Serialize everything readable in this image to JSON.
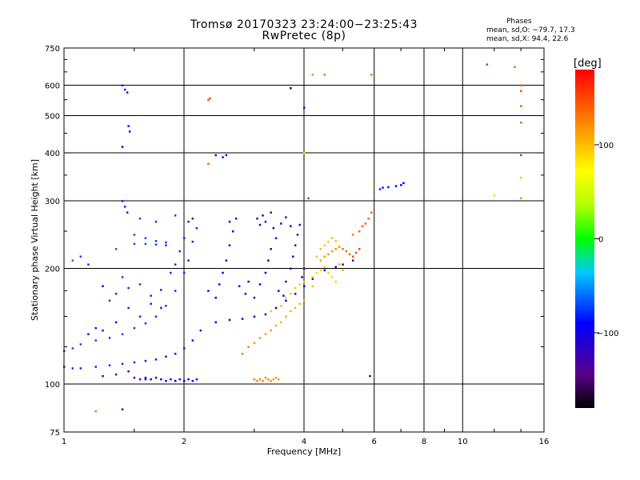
{
  "header": {
    "title": "Tromsø 20170323 23:24:00−23:25:43",
    "subtitle": "RwPretec (8p)"
  },
  "stats": {
    "title": "Phases",
    "o_line": "mean, sd,O: −79.7, 17.3",
    "x_line": "mean, sd,X:  94.4, 22.6"
  },
  "colorbar": {
    "label": "[deg]",
    "range": [
      -180,
      180
    ],
    "ticks": [
      "100",
      "0",
      "−100"
    ],
    "tick_values": [
      100,
      0,
      -100
    ]
  },
  "chart_data": {
    "type": "scatter",
    "xlabel": "Frequency [MHz]",
    "ylabel": "Stationary phase Virtual Height [km]",
    "xscale": "log",
    "yscale": "log",
    "xlim": [
      1,
      16
    ],
    "ylim": [
      75,
      750
    ],
    "xticks": [
      1,
      2,
      4,
      6,
      8,
      10,
      16
    ],
    "xtick_labels": [
      "1",
      "2",
      "4",
      "6",
      "8",
      "10",
      "16"
    ],
    "yticks": [
      75,
      100,
      200,
      300,
      400,
      500,
      600,
      750
    ],
    "ytick_labels": [
      "75",
      "100",
      "200",
      "300",
      "400",
      "500",
      "600",
      "750"
    ],
    "grid": true,
    "color_variable": "phase [deg]",
    "series": [
      {
        "points": [
          [
            1.0,
            111,
            -75
          ],
          [
            1.05,
            110,
            -75
          ],
          [
            1.1,
            110,
            -76
          ],
          [
            1.2,
            111,
            -77
          ],
          [
            1.3,
            112,
            -78
          ],
          [
            1.4,
            113,
            -79
          ],
          [
            1.5,
            114,
            -80
          ],
          [
            1.6,
            115,
            -81
          ],
          [
            1.7,
            116,
            -82
          ],
          [
            1.8,
            118,
            -83
          ],
          [
            1.9,
            120,
            -84
          ],
          [
            2.0,
            124,
            -85
          ],
          [
            2.1,
            130,
            -86
          ],
          [
            2.2,
            138,
            -88
          ],
          [
            2.4,
            145,
            -90
          ],
          [
            2.6,
            147,
            -92
          ],
          [
            2.8,
            148,
            -93
          ],
          [
            3.0,
            150,
            -95
          ],
          [
            3.2,
            152,
            -97
          ],
          [
            3.4,
            158,
            -98
          ],
          [
            3.6,
            165,
            -100
          ],
          [
            3.8,
            172,
            -101
          ],
          [
            4.0,
            180,
            -102
          ],
          [
            4.2,
            188,
            -104
          ],
          [
            4.5,
            198,
            -106
          ],
          [
            4.8,
            202,
            -108
          ],
          [
            5.0,
            205,
            -110
          ],
          [
            5.3,
            210,
            -112
          ],
          [
            1.0,
            122,
            -68
          ],
          [
            1.05,
            124,
            -68
          ],
          [
            1.1,
            127,
            -70
          ],
          [
            1.2,
            130,
            -70
          ],
          [
            1.3,
            132,
            -71
          ],
          [
            1.4,
            135,
            -72
          ],
          [
            1.5,
            140,
            -72
          ],
          [
            1.6,
            144,
            -73
          ],
          [
            1.7,
            150,
            -74
          ],
          [
            1.8,
            160,
            -75
          ],
          [
            1.9,
            175,
            -76
          ],
          [
            2.0,
            195,
            -78
          ],
          [
            2.05,
            210,
            -79
          ],
          [
            2.1,
            235,
            -80
          ],
          [
            2.15,
            255,
            -81
          ],
          [
            1.5,
            232,
            -70
          ],
          [
            1.6,
            232,
            -71
          ],
          [
            1.7,
            231,
            -72
          ],
          [
            1.8,
            230,
            -72
          ],
          [
            1.5,
            245,
            -69
          ],
          [
            1.6,
            240,
            -70
          ],
          [
            1.7,
            236,
            -71
          ],
          [
            1.8,
            234,
            -72
          ],
          [
            1.4,
            190,
            -74
          ],
          [
            1.45,
            178,
            -74
          ],
          [
            1.55,
            182,
            -75
          ],
          [
            1.65,
            170,
            -76
          ],
          [
            1.75,
            176,
            -77
          ],
          [
            1.85,
            195,
            -78
          ],
          [
            1.9,
            205,
            -78
          ],
          [
            1.95,
            222,
            -79
          ],
          [
            2.0,
            240,
            -80
          ],
          [
            2.05,
            265,
            -82
          ],
          [
            1.3,
            165,
            -76
          ],
          [
            1.35,
            172,
            -77
          ],
          [
            1.45,
            158,
            -78
          ],
          [
            1.55,
            150,
            -79
          ],
          [
            1.65,
            162,
            -79
          ],
          [
            1.75,
            158,
            -80
          ],
          [
            1.2,
            140,
            -82
          ],
          [
            1.25,
            138,
            -83
          ],
          [
            1.35,
            145,
            -84
          ],
          [
            1.15,
            135,
            -85
          ],
          [
            2.3,
            175,
            -86
          ],
          [
            2.4,
            168,
            -87
          ],
          [
            2.45,
            182,
            -88
          ],
          [
            2.5,
            195,
            -89
          ],
          [
            2.55,
            210,
            -90
          ],
          [
            2.6,
            230,
            -91
          ],
          [
            2.65,
            250,
            -92
          ],
          [
            2.7,
            270,
            -93
          ],
          [
            2.6,
            265,
            -92
          ],
          [
            2.75,
            180,
            -90
          ],
          [
            2.85,
            172,
            -91
          ],
          [
            2.9,
            185,
            -92
          ],
          [
            3.0,
            168,
            -94
          ],
          [
            3.1,
            182,
            -100
          ],
          [
            3.2,
            195,
            -102
          ],
          [
            3.25,
            210,
            -104
          ],
          [
            3.3,
            225,
            -106
          ],
          [
            3.4,
            240,
            -108
          ],
          [
            3.35,
            255,
            -109
          ],
          [
            3.45,
            175,
            -110
          ],
          [
            3.55,
            170,
            -112
          ],
          [
            3.6,
            185,
            -114
          ],
          [
            3.7,
            200,
            -116
          ],
          [
            3.75,
            215,
            -117
          ],
          [
            3.8,
            230,
            -118
          ],
          [
            3.85,
            245,
            -119
          ],
          [
            3.9,
            260,
            -120
          ],
          [
            3.95,
            190,
            -115
          ],
          [
            4.0,
            200,
            -116
          ],
          [
            3.05,
            270,
            -115
          ],
          [
            3.1,
            260,
            -116
          ],
          [
            3.15,
            275,
            -117
          ],
          [
            3.2,
            265,
            -118
          ],
          [
            3.3,
            280,
            -119
          ],
          [
            3.5,
            262,
            -120
          ],
          [
            3.6,
            272,
            -121
          ],
          [
            3.7,
            258,
            -122
          ],
          [
            1.75,
            103,
            -85
          ],
          [
            1.8,
            102,
            -86
          ],
          [
            1.85,
            103,
            -87
          ],
          [
            1.9,
            102,
            -88
          ],
          [
            1.95,
            103,
            -89
          ],
          [
            2.0,
            102,
            -90
          ],
          [
            2.05,
            103,
            -91
          ],
          [
            2.1,
            102,
            -92
          ],
          [
            2.15,
            103,
            -93
          ],
          [
            1.6,
            104,
            -95
          ],
          [
            1.65,
            103,
            -96
          ],
          [
            1.5,
            104,
            -120
          ],
          [
            1.55,
            103,
            -122
          ],
          [
            1.7,
            104,
            -124
          ],
          [
            1.45,
            108,
            -130
          ],
          [
            1.35,
            106,
            -140
          ],
          [
            1.25,
            105,
            -150
          ],
          [
            1.6,
            103,
            -150
          ],
          [
            1.9,
            102,
            -155
          ],
          [
            3.0,
            103,
            130
          ],
          [
            3.05,
            102,
            128
          ],
          [
            3.1,
            103,
            126
          ],
          [
            3.15,
            102,
            125
          ],
          [
            3.2,
            104,
            124
          ],
          [
            3.25,
            103,
            122
          ],
          [
            3.3,
            102,
            120
          ],
          [
            3.35,
            103,
            118
          ],
          [
            3.4,
            104,
            117
          ],
          [
            3.45,
            103,
            116
          ],
          [
            2.8,
            120,
            130
          ],
          [
            2.9,
            125,
            125
          ],
          [
            3.0,
            128,
            120
          ],
          [
            3.1,
            132,
            118
          ],
          [
            3.2,
            135,
            116
          ],
          [
            3.3,
            138,
            114
          ],
          [
            3.4,
            142,
            112
          ],
          [
            3.5,
            145,
            110
          ],
          [
            3.6,
            150,
            108
          ],
          [
            3.7,
            155,
            106
          ],
          [
            3.8,
            158,
            105
          ],
          [
            3.9,
            162,
            104
          ],
          [
            4.0,
            165,
            103
          ],
          [
            3.3,
            155,
            98
          ],
          [
            3.5,
            160,
            97
          ],
          [
            3.6,
            168,
            96
          ],
          [
            3.7,
            172,
            95
          ],
          [
            3.8,
            178,
            94
          ],
          [
            3.9,
            182,
            93
          ],
          [
            4.0,
            185,
            92
          ],
          [
            4.2,
            190,
            91
          ],
          [
            4.3,
            195,
            90
          ],
          [
            4.4,
            198,
            89
          ],
          [
            4.5,
            202,
            88
          ],
          [
            4.4,
            210,
            110
          ],
          [
            4.5,
            215,
            112
          ],
          [
            4.6,
            218,
            115
          ],
          [
            4.7,
            222,
            118
          ],
          [
            4.8,
            225,
            120
          ],
          [
            4.9,
            228,
            125
          ],
          [
            5.0,
            225,
            130
          ],
          [
            5.1,
            222,
            135
          ],
          [
            5.2,
            218,
            140
          ],
          [
            5.3,
            215,
            145
          ],
          [
            5.4,
            220,
            150
          ],
          [
            5.5,
            225,
            155
          ],
          [
            4.5,
            230,
            95
          ],
          [
            4.6,
            235,
            96
          ],
          [
            4.7,
            240,
            97
          ],
          [
            4.8,
            236,
            98
          ],
          [
            4.4,
            225,
            99
          ],
          [
            4.3,
            215,
            101
          ],
          [
            4.6,
            195,
            92
          ],
          [
            4.7,
            190,
            93
          ],
          [
            4.8,
            185,
            94
          ],
          [
            4.2,
            180,
            100
          ],
          [
            4.9,
            205,
            105
          ],
          [
            5.0,
            198,
            107
          ],
          [
            5.6,
            258,
            140
          ],
          [
            5.7,
            262,
            138
          ],
          [
            5.8,
            270,
            135
          ],
          [
            5.9,
            280,
            132
          ],
          [
            5.5,
            250,
            136
          ],
          [
            5.3,
            245,
            134
          ],
          [
            6.2,
            322,
            -80
          ],
          [
            6.3,
            325,
            -82
          ],
          [
            6.5,
            326,
            -85
          ],
          [
            6.8,
            328,
            -88
          ],
          [
            7.0,
            330,
            -90
          ],
          [
            7.1,
            334,
            -92
          ],
          [
            1.4,
            600,
            -80
          ],
          [
            1.42,
            585,
            -82
          ],
          [
            1.44,
            575,
            -84
          ],
          [
            1.45,
            470,
            -86
          ],
          [
            1.46,
            455,
            -88
          ],
          [
            1.4,
            415,
            -90
          ],
          [
            1.4,
            300,
            -78
          ],
          [
            1.42,
            290,
            -80
          ],
          [
            1.44,
            280,
            -82
          ],
          [
            2.5,
            390,
            -85
          ],
          [
            2.55,
            395,
            -87
          ],
          [
            2.4,
            395,
            -110
          ],
          [
            2.3,
            550,
            150
          ],
          [
            2.32,
            555,
            152
          ],
          [
            2.3,
            375,
            140
          ],
          [
            3.7,
            590,
            -160
          ],
          [
            4.0,
            525,
            -120
          ],
          [
            4.0,
            400,
            40
          ],
          [
            4.1,
            305,
            -60
          ],
          [
            4.2,
            640,
            120
          ],
          [
            4.5,
            640,
            130
          ],
          [
            5.9,
            640,
            130
          ],
          [
            5.85,
            105,
            -150
          ],
          [
            11.5,
            680,
            160
          ],
          [
            13.5,
            670,
            140
          ],
          [
            14.0,
            600,
            145
          ],
          [
            14.0,
            580,
            150
          ],
          [
            14.0,
            530,
            145
          ],
          [
            14.0,
            480,
            140
          ],
          [
            14.0,
            395,
            -60
          ],
          [
            14.0,
            345,
            100
          ],
          [
            14.0,
            305,
            120
          ],
          [
            12.0,
            310,
            90
          ],
          [
            1.2,
            85,
            130
          ],
          [
            1.4,
            86,
            -90
          ],
          [
            1.05,
            210,
            -60
          ],
          [
            1.1,
            215,
            -70
          ],
          [
            1.15,
            205,
            -75
          ],
          [
            1.25,
            180,
            -90
          ],
          [
            1.35,
            225,
            -65
          ],
          [
            1.55,
            270,
            -70
          ],
          [
            1.7,
            265,
            -75
          ],
          [
            1.9,
            275,
            -72
          ],
          [
            2.1,
            270,
            -140
          ]
        ]
      }
    ]
  }
}
